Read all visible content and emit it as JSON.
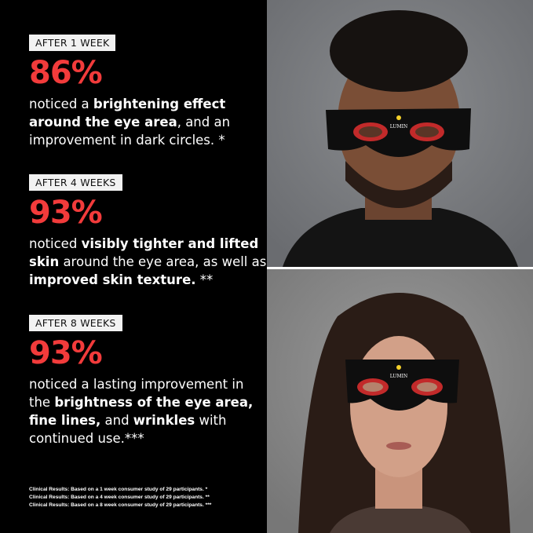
{
  "blocks": [
    {
      "tag": "AFTER 1 WEEK",
      "percent": "86%",
      "body": [
        {
          "t": "noticed a ",
          "b": false
        },
        {
          "t": "brightening effect around the eye area",
          "b": true
        },
        {
          "t": ", and an improvement in dark circles. *",
          "b": false
        }
      ]
    },
    {
      "tag": "AFTER 4 WEEKS",
      "percent": "93%",
      "body": [
        {
          "t": "noticed ",
          "b": false
        },
        {
          "t": "visibly tighter and lifted skin",
          "b": true
        },
        {
          "t": " around the eye area, as well as ",
          "b": false
        },
        {
          "t": "improved skin texture.",
          "b": true
        },
        {
          "t": " **",
          "b": false
        }
      ]
    },
    {
      "tag": "AFTER 8 WEEKS",
      "percent": "93%",
      "body": [
        {
          "t": "noticed a lasting improvement in the ",
          "b": false
        },
        {
          "t": "brightness of the eye area, fine lines,",
          "b": true
        },
        {
          "t": " and ",
          "b": false
        },
        {
          "t": "wrinkles",
          "b": true
        },
        {
          "t": " with continued use.***",
          "b": false
        }
      ]
    }
  ],
  "footnotes": [
    "Clinical Results: Based on a 1 week consumer study of 29 participants. *",
    "Clinical Results: Based on a 4 week consumer study of 29 participants. **",
    "Clinical Results: Based on a 8 week consumer study of 29 participants. ***"
  ],
  "brand_logo": "LUMIN",
  "colors": {
    "accent": "#f23b3b",
    "background": "#000000",
    "tag_bg": "#f2f2f2"
  }
}
